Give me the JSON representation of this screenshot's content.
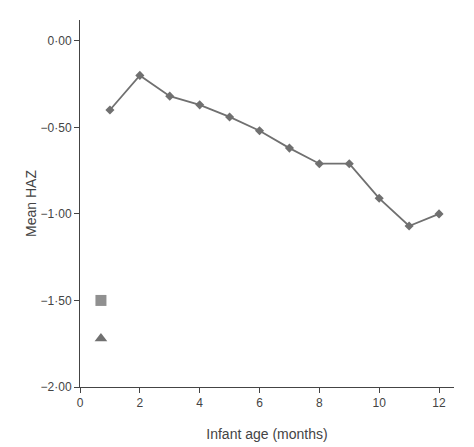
{
  "chart_data": {
    "type": "line",
    "xlabel": "Infant age (months)",
    "ylabel": "Mean HAZ",
    "series": [
      {
        "type": "line",
        "x": [
          1,
          2,
          3,
          4,
          5,
          6,
          7,
          8,
          9,
          10,
          11,
          12
        ],
        "values": [
          -0.4,
          -0.2,
          -0.32,
          -0.37,
          -0.44,
          -0.52,
          -0.62,
          -0.71,
          -0.71,
          -0.91,
          -1.07,
          -1.0
        ],
        "color": "#707070",
        "marker": "diamond"
      },
      {
        "type": "scatter",
        "x": [
          0.7
        ],
        "values": [
          -1.5
        ],
        "color": "#909090",
        "marker": "square"
      },
      {
        "type": "scatter",
        "x": [
          0.7
        ],
        "values": [
          -1.72
        ],
        "color": "#707070",
        "marker": "triangle"
      }
    ],
    "xlim": [
      0,
      12.5
    ],
    "ylim": [
      -2.0,
      0.12
    ],
    "xticks": [
      0,
      2,
      4,
      6,
      8,
      10,
      12
    ],
    "yticks": [
      {
        "value": 0.0,
        "label": "0·00"
      },
      {
        "value": -0.5,
        "label": "−0·50"
      },
      {
        "value": -1.0,
        "label": "−1·00"
      },
      {
        "value": -1.5,
        "label": "−1·50"
      },
      {
        "value": -2.0,
        "label": "−2·00"
      }
    ],
    "grid": false
  }
}
